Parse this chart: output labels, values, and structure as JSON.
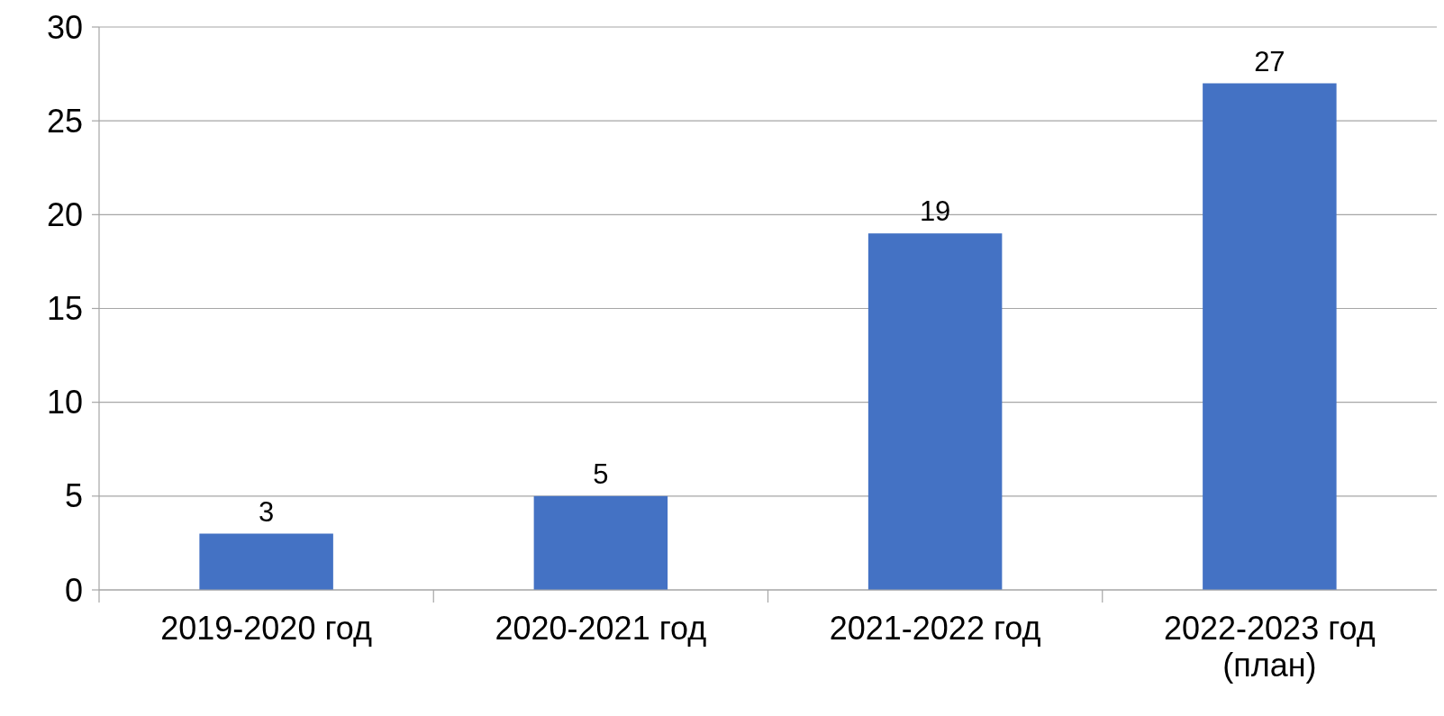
{
  "chart_data": {
    "type": "bar",
    "categories": [
      "2019-2020 год",
      "2020-2021 год",
      "2021-2022 год",
      "2022-2023 год (план)"
    ],
    "values": [
      3,
      5,
      19,
      27
    ],
    "color": "#4472c4",
    "ylim": [
      0,
      30
    ],
    "yticks": [
      0,
      5,
      10,
      15,
      20,
      25,
      30
    ],
    "grid": "y",
    "data_labels": true
  }
}
